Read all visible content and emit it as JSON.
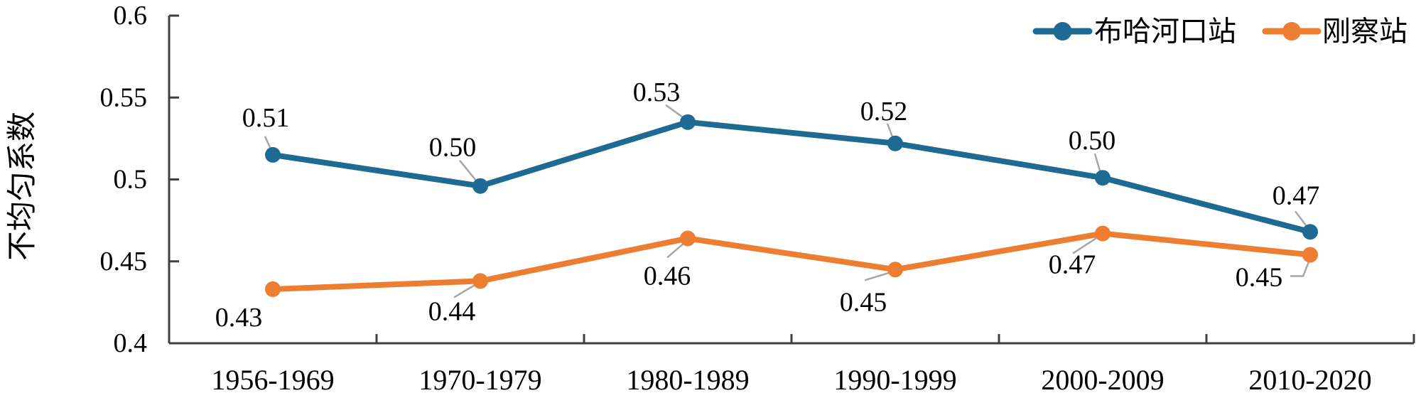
{
  "figure": {
    "background": "#ffffff",
    "axis_color": "#3f3f3f",
    "leader_color": "#a6a6a6",
    "text_color": "#000000"
  },
  "chart_data": {
    "type": "line",
    "title": "",
    "xlabel": "",
    "ylabel": "不均匀系数",
    "categories": [
      "1956-1969",
      "1970-1979",
      "1980-1989",
      "1990-1999",
      "2000-2009",
      "2010-2020"
    ],
    "series": [
      {
        "name": "布哈河口站",
        "color": "#1f6a93",
        "values": [
          0.51,
          0.5,
          0.53,
          0.52,
          0.5,
          0.47
        ],
        "labels": [
          "0.51",
          "0.50",
          "0.53",
          "0.52",
          "0.50",
          "0.47"
        ],
        "plot_values": [
          0.515,
          0.496,
          0.535,
          0.522,
          0.501,
          0.468
        ]
      },
      {
        "name": "刚察站",
        "color": "#ed7d31",
        "values": [
          0.43,
          0.44,
          0.46,
          0.45,
          0.47,
          0.45
        ],
        "labels": [
          "0.43",
          "0.44",
          "0.46",
          "0.45",
          "0.47",
          "0.45"
        ],
        "plot_values": [
          0.433,
          0.438,
          0.464,
          0.445,
          0.467,
          0.454
        ]
      }
    ],
    "ylim": [
      0.4,
      0.6
    ],
    "y_ticks": [
      0.6,
      0.55,
      0.5,
      0.45,
      0.4
    ],
    "y_tick_labels": [
      "0.6",
      "0.55",
      "0.5",
      "0.45",
      "0.4"
    ],
    "grid": false,
    "legend_position": "top-right",
    "marker": "circle",
    "label_layout": {
      "offsets": [
        [
          [
            -10,
            -52
          ],
          [
            -39,
            -54
          ],
          [
            -44,
            -42
          ],
          [
            -16,
            -45
          ],
          [
            -15,
            -52
          ],
          [
            -20,
            -51
          ]
        ],
        [
          [
            -48,
            40
          ],
          [
            -40,
            43
          ],
          [
            -29,
            53
          ],
          [
            -45,
            46
          ],
          [
            -43,
            44
          ],
          [
            -72,
            32
          ]
        ]
      ],
      "leaders": [
        [
          [
            [
              -11,
              -26
            ],
            [
              -1,
              -4
            ]
          ],
          [
            [
              -29,
              -36
            ],
            [
              -3,
              -4
            ]
          ],
          [
            [
              -31,
              -24
            ],
            [
              -3,
              -4
            ]
          ],
          [
            [
              -11,
              -28
            ],
            [
              -2,
              -4
            ]
          ],
          [
            [
              -11,
              -34
            ],
            [
              -2,
              -3
            ]
          ],
          [
            [
              -21,
              -29
            ],
            [
              -2,
              -4
            ]
          ]
        ],
        [
          null,
          [
            [
              -37,
              23
            ],
            [
              -5,
              4
            ]
          ],
          [
            [
              -29,
              27
            ],
            [
              -1,
              3
            ]
          ],
          [
            [
              -43,
              15
            ],
            [
              0,
              2
            ]
          ],
          [
            [
              -42,
              28
            ],
            [
              -2,
              2
            ]
          ],
          [
            [
              -28,
              30
            ],
            [
              -10,
              30
            ],
            [
              0,
              5
            ]
          ]
        ]
      ]
    }
  }
}
